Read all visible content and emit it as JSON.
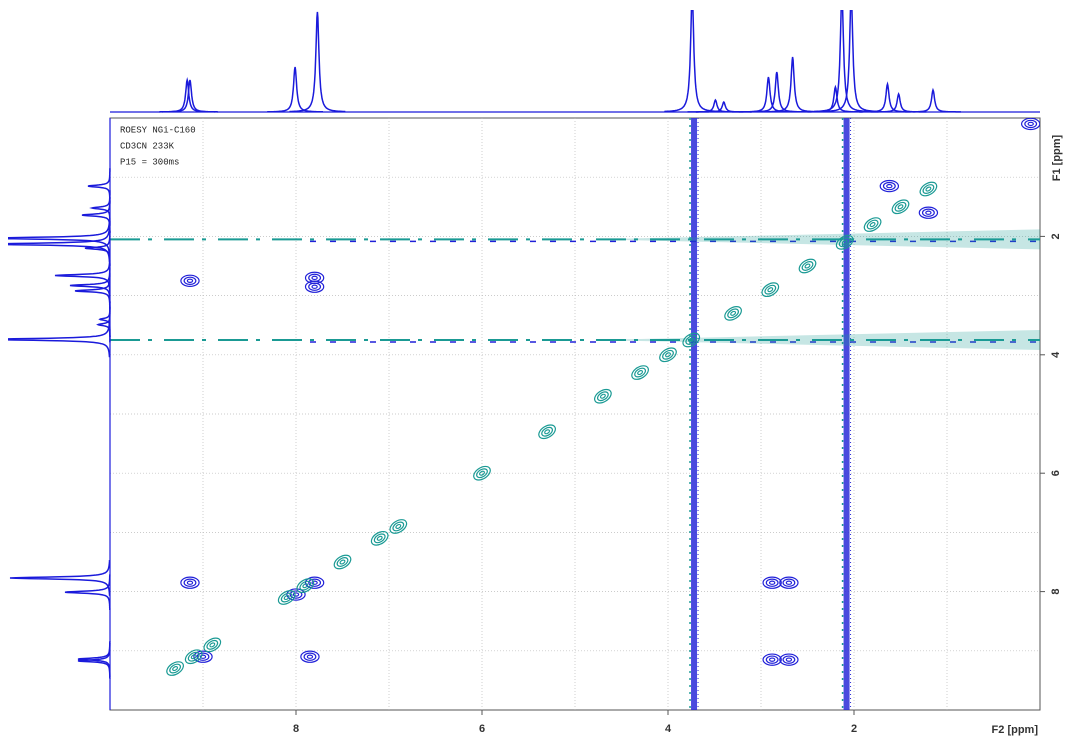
{
  "chart_data": {
    "type": "nmr2d",
    "annotations": [
      "ROESY NGi-C160",
      "CD3CN 233K",
      "P15 = 300ms"
    ],
    "xlabel": "F2 [ppm]",
    "ylabel": "F1 [ppm]",
    "xlim": [
      10,
      0
    ],
    "ylim": [
      0,
      10
    ],
    "xticks": [
      8,
      6,
      4,
      2
    ],
    "yticks": [
      2,
      4,
      6,
      8
    ],
    "minor_xticks": [
      9,
      7,
      5,
      3,
      1
    ],
    "minor_yticks": [
      1,
      3,
      5,
      7,
      9
    ],
    "grid": true,
    "projection": {
      "color": "#1a1adb",
      "x": [
        9.17,
        9.14,
        8.01,
        7.77,
        3.74,
        3.49,
        3.4,
        2.92,
        2.83,
        2.66,
        2.2,
        2.13,
        2.03,
        1.64,
        1.52,
        1.15
      ],
      "values": [
        32,
        32,
        45,
        100,
        120,
        12,
        10,
        35,
        40,
        55,
        25,
        120,
        120,
        28,
        18,
        22
      ]
    },
    "series": [
      {
        "color": "#2020d8",
        "x": [
          9.14,
          7.8,
          9.14,
          7.8,
          7.8,
          2.88,
          2.7,
          2.88,
          2.7,
          7.85,
          9.0,
          1.62,
          1.2,
          0.1,
          8.0
        ],
        "y": [
          7.85,
          7.85,
          2.75,
          2.7,
          2.85,
          7.85,
          7.85,
          9.15,
          9.15,
          9.1,
          9.1,
          1.15,
          1.6,
          0.1,
          8.05
        ]
      },
      {
        "color": "#1a9a94",
        "x": [
          9.3,
          9.1,
          8.9,
          8.1,
          7.9,
          7.5,
          7.1,
          6.9,
          6.0,
          5.3,
          4.7,
          4.3,
          4.0,
          3.75,
          3.3,
          2.9,
          2.5,
          2.1,
          1.8,
          1.5,
          1.2
        ],
        "y": [
          9.3,
          9.1,
          8.9,
          8.1,
          7.9,
          7.5,
          7.1,
          6.9,
          6.0,
          5.3,
          4.7,
          4.3,
          4.0,
          3.75,
          3.3,
          2.9,
          2.5,
          2.1,
          1.8,
          1.5,
          1.2
        ]
      }
    ],
    "streaks": {
      "f2": [
        3.72,
        2.08
      ],
      "f1": [
        2.05,
        3.75
      ]
    }
  }
}
